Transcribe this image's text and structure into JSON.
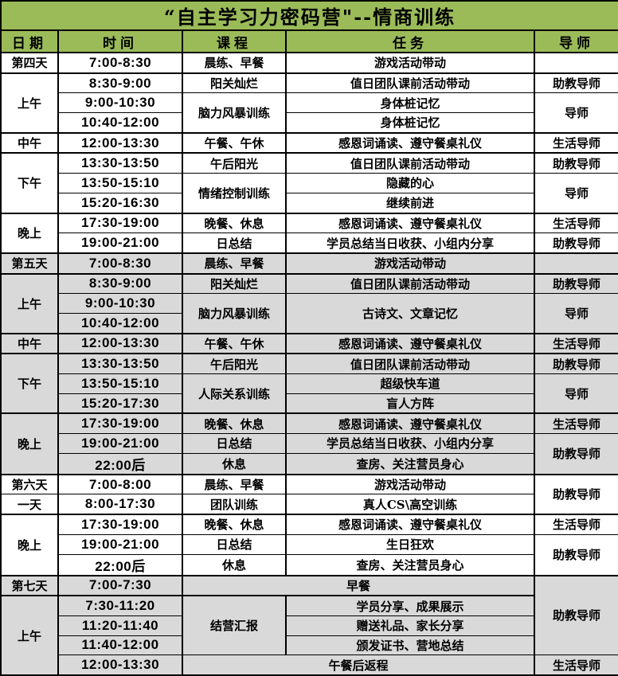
{
  "title": "“自主学习力密码营\"--情商训练",
  "colors": {
    "header_bg": "#9BBB59",
    "row_shade_gray": "#D9D9D9",
    "row_shade_white": "#FFFFFF",
    "grid_border": "#000000",
    "text": "#000000"
  },
  "columns": [
    {
      "key": "date",
      "label": "日期"
    },
    {
      "key": "time",
      "label": "时间"
    },
    {
      "key": "course",
      "label": "课程"
    },
    {
      "key": "task",
      "label": "任务"
    },
    {
      "key": "mentor",
      "label": "导师"
    }
  ],
  "rows": [
    {
      "shade": "white",
      "thick_top": true,
      "cells": [
        {
          "c": 0,
          "text": "第四天"
        },
        {
          "c": 1,
          "text": "7:00-8:30"
        },
        {
          "c": 2,
          "text": "晨练、早餐"
        },
        {
          "c": 3,
          "text": "游戏活动带动"
        },
        {
          "c": 4,
          "text": ""
        }
      ]
    },
    {
      "shade": "white",
      "thick_top": true,
      "cells": [
        {
          "c": 0,
          "text": "上午",
          "rs": 3
        },
        {
          "c": 1,
          "text": "8:30-9:00"
        },
        {
          "c": 2,
          "text": "阳关灿烂"
        },
        {
          "c": 3,
          "text": "值日团队课前活动带动"
        },
        {
          "c": 4,
          "text": "助教导师"
        }
      ]
    },
    {
      "shade": "white",
      "thick_top": false,
      "cells": [
        {
          "c": 1,
          "text": "9:00-10:30"
        },
        {
          "c": 2,
          "text": "脑力风暴训练",
          "rs": 2
        },
        {
          "c": 3,
          "text": "身体桩记忆"
        },
        {
          "c": 4,
          "text": "导师",
          "rs": 2
        }
      ]
    },
    {
      "shade": "white",
      "thick_top": false,
      "cells": [
        {
          "c": 1,
          "text": "10:40-12:00"
        },
        {
          "c": 3,
          "text": "身体桩记忆"
        }
      ]
    },
    {
      "shade": "white",
      "thick_top": true,
      "cells": [
        {
          "c": 0,
          "text": "中午"
        },
        {
          "c": 1,
          "text": "12:00-13:30"
        },
        {
          "c": 2,
          "text": "午餐、午休"
        },
        {
          "c": 3,
          "text": "感恩词诵读、遵守餐桌礼仪"
        },
        {
          "c": 4,
          "text": "生活导师"
        }
      ]
    },
    {
      "shade": "white",
      "thick_top": true,
      "cells": [
        {
          "c": 0,
          "text": "下午",
          "rs": 3
        },
        {
          "c": 1,
          "text": "13:30-13:50"
        },
        {
          "c": 2,
          "text": "午后阳光"
        },
        {
          "c": 3,
          "text": "值日团队课前活动带动"
        },
        {
          "c": 4,
          "text": "助教导师"
        }
      ]
    },
    {
      "shade": "white",
      "thick_top": false,
      "cells": [
        {
          "c": 1,
          "text": "13:50-15:10"
        },
        {
          "c": 2,
          "text": "情绪控制训练",
          "rs": 2
        },
        {
          "c": 3,
          "text": "隐藏的心"
        },
        {
          "c": 4,
          "text": "导师",
          "rs": 2
        }
      ]
    },
    {
      "shade": "white",
      "thick_top": false,
      "cells": [
        {
          "c": 1,
          "text": "15:20-16:30"
        },
        {
          "c": 3,
          "text": "继续前进"
        }
      ]
    },
    {
      "shade": "white",
      "thick_top": true,
      "cells": [
        {
          "c": 0,
          "text": "晚上",
          "rs": 2
        },
        {
          "c": 1,
          "text": "17:30-19:00"
        },
        {
          "c": 2,
          "text": "晚餐、休息"
        },
        {
          "c": 3,
          "text": "感恩词诵读、遵守餐桌礼仪"
        },
        {
          "c": 4,
          "text": "生活导师"
        }
      ]
    },
    {
      "shade": "white",
      "thick_top": false,
      "cells": [
        {
          "c": 1,
          "text": "19:00-21:00"
        },
        {
          "c": 2,
          "text": "日总结"
        },
        {
          "c": 3,
          "text": "学员总结当日收获、小组内分享"
        },
        {
          "c": 4,
          "text": "助教导师"
        }
      ]
    },
    {
      "shade": "gray",
      "thick_top": true,
      "cells": [
        {
          "c": 0,
          "text": "第五天"
        },
        {
          "c": 1,
          "text": "7:00-8:30"
        },
        {
          "c": 2,
          "text": "晨练、早餐"
        },
        {
          "c": 3,
          "text": "游戏活动带动"
        },
        {
          "c": 4,
          "text": ""
        }
      ]
    },
    {
      "shade": "gray",
      "thick_top": true,
      "cells": [
        {
          "c": 0,
          "text": "上午",
          "rs": 3
        },
        {
          "c": 1,
          "text": "8:30-9:00"
        },
        {
          "c": 2,
          "text": "阳关灿烂"
        },
        {
          "c": 3,
          "text": "值日团队课前活动带动"
        },
        {
          "c": 4,
          "text": "助教导师"
        }
      ]
    },
    {
      "shade": "gray",
      "thick_top": false,
      "cells": [
        {
          "c": 1,
          "text": "9:00-10:30"
        },
        {
          "c": 2,
          "text": "脑力风暴训练",
          "rs": 2
        },
        {
          "c": 3,
          "text": "古诗文、文章记忆",
          "rs": 2
        },
        {
          "c": 4,
          "text": "导师",
          "rs": 2
        }
      ]
    },
    {
      "shade": "gray",
      "thick_top": false,
      "cells": [
        {
          "c": 1,
          "text": "10:40-12:00"
        }
      ]
    },
    {
      "shade": "gray",
      "thick_top": true,
      "cells": [
        {
          "c": 0,
          "text": "中午"
        },
        {
          "c": 1,
          "text": "12:00-13:30"
        },
        {
          "c": 2,
          "text": "午餐、午休"
        },
        {
          "c": 3,
          "text": "感恩词诵读、遵守餐桌礼仪"
        },
        {
          "c": 4,
          "text": "生活导师"
        }
      ]
    },
    {
      "shade": "gray",
      "thick_top": true,
      "cells": [
        {
          "c": 0,
          "text": "下午",
          "rs": 3
        },
        {
          "c": 1,
          "text": "13:30-13:50"
        },
        {
          "c": 2,
          "text": "午后阳光"
        },
        {
          "c": 3,
          "text": "值日团队课前活动带动"
        },
        {
          "c": 4,
          "text": "助教导师"
        }
      ]
    },
    {
      "shade": "gray",
      "thick_top": false,
      "cells": [
        {
          "c": 1,
          "text": "13:50-15:10"
        },
        {
          "c": 2,
          "text": "人际关系训练",
          "rs": 2
        },
        {
          "c": 3,
          "text": "超级快车道"
        },
        {
          "c": 4,
          "text": "导师",
          "rs": 2
        }
      ]
    },
    {
      "shade": "gray",
      "thick_top": false,
      "cells": [
        {
          "c": 1,
          "text": "15:20-17:30"
        },
        {
          "c": 3,
          "text": "盲人方阵"
        }
      ]
    },
    {
      "shade": "gray",
      "thick_top": true,
      "cells": [
        {
          "c": 0,
          "text": "晚上",
          "rs": 3
        },
        {
          "c": 1,
          "text": "17:30-19:00"
        },
        {
          "c": 2,
          "text": "晚餐、休息"
        },
        {
          "c": 3,
          "text": "感恩词诵读、遵守餐桌礼仪"
        },
        {
          "c": 4,
          "text": "生活导师"
        }
      ]
    },
    {
      "shade": "gray",
      "thick_top": false,
      "cells": [
        {
          "c": 1,
          "text": "19:00-21:00"
        },
        {
          "c": 2,
          "text": "日总结"
        },
        {
          "c": 3,
          "text": "学员总结当日收获、小组内分享"
        },
        {
          "c": 4,
          "text": "助教导师",
          "rs": 2
        }
      ]
    },
    {
      "shade": "gray",
      "thick_top": false,
      "cells": [
        {
          "c": 1,
          "text": "22:00后"
        },
        {
          "c": 2,
          "text": "休息"
        },
        {
          "c": 3,
          "text": "查房、关注营员身心"
        }
      ]
    },
    {
      "shade": "white",
      "thick_top": true,
      "cells": [
        {
          "c": 0,
          "text": "第六天"
        },
        {
          "c": 1,
          "text": "7:00-8:00"
        },
        {
          "c": 2,
          "text": "晨练、早餐"
        },
        {
          "c": 3,
          "text": "游戏活动带动"
        },
        {
          "c": 4,
          "text": "助教导师",
          "rs": 2
        }
      ]
    },
    {
      "shade": "white",
      "thick_top": false,
      "cells": [
        {
          "c": 0,
          "text": "一天"
        },
        {
          "c": 1,
          "text": "8:00-17:30"
        },
        {
          "c": 2,
          "text": "团队训练"
        },
        {
          "c": 3,
          "text": "真人CS\\高空训练"
        }
      ]
    },
    {
      "shade": "white",
      "thick_top": true,
      "cells": [
        {
          "c": 0,
          "text": "晚上",
          "rs": 3
        },
        {
          "c": 1,
          "text": "17:30-19:00"
        },
        {
          "c": 2,
          "text": "晚餐、休息"
        },
        {
          "c": 3,
          "text": "感恩词诵读、遵守餐桌礼仪"
        },
        {
          "c": 4,
          "text": "生活导师"
        }
      ]
    },
    {
      "shade": "white",
      "thick_top": false,
      "cells": [
        {
          "c": 1,
          "text": "19:00-21:00"
        },
        {
          "c": 2,
          "text": "日总结"
        },
        {
          "c": 3,
          "text": "生日狂欢"
        },
        {
          "c": 4,
          "text": "助教导师",
          "rs": 2
        }
      ]
    },
    {
      "shade": "white",
      "thick_top": false,
      "cells": [
        {
          "c": 1,
          "text": "22:00后"
        },
        {
          "c": 2,
          "text": "休息"
        },
        {
          "c": 3,
          "text": "查房、关注营员身心"
        }
      ]
    },
    {
      "shade": "gray",
      "thick_top": true,
      "cells": [
        {
          "c": 0,
          "text": "第七天"
        },
        {
          "c": 1,
          "text": "7:00-7:30"
        },
        {
          "c": 2,
          "text": "早餐",
          "cs": 2
        },
        {
          "c": 4,
          "text": "助教导师",
          "rs": 4
        }
      ]
    },
    {
      "shade": "gray",
      "thick_top": true,
      "cells": [
        {
          "c": 0,
          "text": "上午",
          "rs": 4
        },
        {
          "c": 1,
          "text": "7:30-11:20"
        },
        {
          "c": 2,
          "text": "结营汇报",
          "rs": 3
        },
        {
          "c": 3,
          "text": "学员分享、成果展示"
        }
      ]
    },
    {
      "shade": "gray",
      "thick_top": false,
      "cells": [
        {
          "c": 1,
          "text": "11:20-11:40"
        },
        {
          "c": 3,
          "text": "赠送礼品、家长分享"
        }
      ]
    },
    {
      "shade": "gray",
      "thick_top": false,
      "cells": [
        {
          "c": 1,
          "text": "11:40-12:00"
        },
        {
          "c": 3,
          "text": "颁发证书、营地总结"
        }
      ]
    },
    {
      "shade": "gray",
      "thick_top": false,
      "cells": [
        {
          "c": 1,
          "text": "12:00-13:30"
        },
        {
          "c": 2,
          "text": "午餐后返程",
          "cs": 2
        },
        {
          "c": 4,
          "text": "生活导师"
        }
      ]
    }
  ]
}
